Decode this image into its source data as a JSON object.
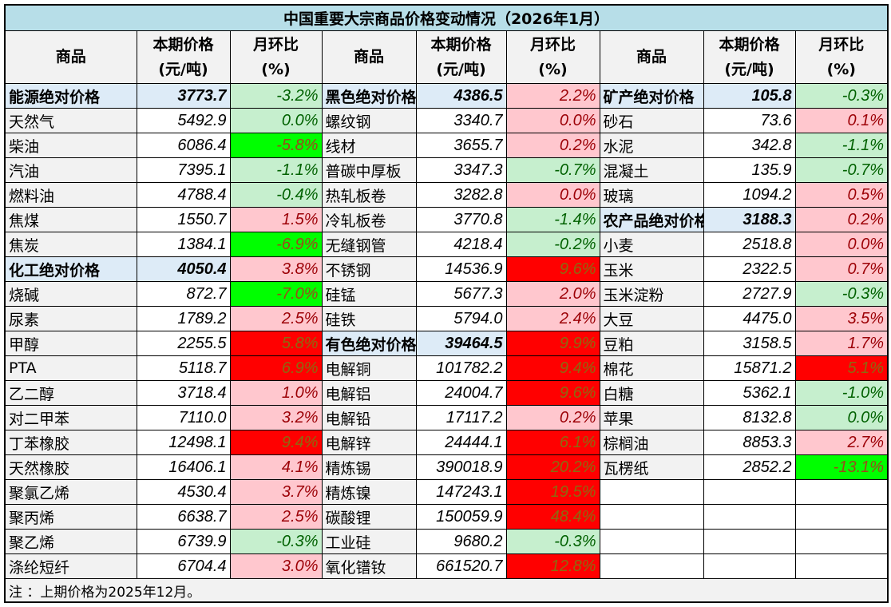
{
  "title": "中国重要大宗商品价格变动情况（2026年1月）",
  "headers": {
    "name": "商品",
    "price_l1": "本期价格",
    "price_l2": "(元/吨)",
    "pct_l1": "月环比",
    "pct_l2": "(%)"
  },
  "columns": [
    [
      {
        "name": "能源绝对价格",
        "price": "3773.7",
        "pct": "-3.2%",
        "fill": "lg",
        "section": true
      },
      {
        "name": "天然气",
        "price": "5492.9",
        "pct": "0.0%",
        "fill": "lg"
      },
      {
        "name": "柴油",
        "price": "6086.4",
        "pct": "-5.8%",
        "fill": "g"
      },
      {
        "name": "汽油",
        "price": "7395.1",
        "pct": "-1.1%",
        "fill": "lg"
      },
      {
        "name": "燃料油",
        "price": "4788.4",
        "pct": "-0.4%",
        "fill": "lg"
      },
      {
        "name": "焦煤",
        "price": "1550.7",
        "pct": "1.5%",
        "fill": "p"
      },
      {
        "name": "焦炭",
        "price": "1384.1",
        "pct": "-6.9%",
        "fill": "g"
      },
      {
        "name": "化工绝对价格",
        "price": "4050.4",
        "pct": "3.8%",
        "fill": "p",
        "section": true
      },
      {
        "name": "烧碱",
        "price": "872.7",
        "pct": "-7.0%",
        "fill": "g"
      },
      {
        "name": "尿素",
        "price": "1789.2",
        "pct": "2.5%",
        "fill": "p"
      },
      {
        "name": "甲醇",
        "price": "2255.5",
        "pct": "5.8%",
        "fill": "r"
      },
      {
        "name": "PTA",
        "price": "5118.7",
        "pct": "6.9%",
        "fill": "r"
      },
      {
        "name": "乙二醇",
        "price": "3718.4",
        "pct": "1.0%",
        "fill": "p"
      },
      {
        "name": "对二甲苯",
        "price": "7110.0",
        "pct": "3.2%",
        "fill": "p"
      },
      {
        "name": "丁苯橡胶",
        "price": "12498.1",
        "pct": "9.4%",
        "fill": "r"
      },
      {
        "name": "天然橡胶",
        "price": "16406.1",
        "pct": "4.1%",
        "fill": "p"
      },
      {
        "name": "聚氯乙烯",
        "price": "4530.4",
        "pct": "3.7%",
        "fill": "p"
      },
      {
        "name": "聚丙烯",
        "price": "6638.7",
        "pct": "2.5%",
        "fill": "p"
      },
      {
        "name": "聚乙烯",
        "price": "6739.9",
        "pct": "-0.3%",
        "fill": "lg"
      },
      {
        "name": "涤纶短纤",
        "price": "6704.4",
        "pct": "3.0%",
        "fill": "p"
      }
    ],
    [
      {
        "name": "黑色绝对价格",
        "price": "4386.5",
        "pct": "2.2%",
        "fill": "p",
        "section": true
      },
      {
        "name": "螺纹钢",
        "price": "3340.7",
        "pct": "0.0%",
        "fill": "p"
      },
      {
        "name": "线材",
        "price": "3655.7",
        "pct": "0.2%",
        "fill": "p"
      },
      {
        "name": "普碳中厚板",
        "price": "3347.3",
        "pct": "-0.7%",
        "fill": "lg"
      },
      {
        "name": "热轧板卷",
        "price": "3282.8",
        "pct": "0.0%",
        "fill": "p"
      },
      {
        "name": "冷轧板卷",
        "price": "3770.8",
        "pct": "-1.4%",
        "fill": "lg"
      },
      {
        "name": "无缝钢管",
        "price": "4218.4",
        "pct": "-0.2%",
        "fill": "lg"
      },
      {
        "name": "不锈钢",
        "price": "14536.9",
        "pct": "9.6%",
        "fill": "r"
      },
      {
        "name": "硅锰",
        "price": "5677.3",
        "pct": "2.0%",
        "fill": "p"
      },
      {
        "name": "硅铁",
        "price": "5794.0",
        "pct": "2.4%",
        "fill": "p"
      },
      {
        "name": "有色绝对价格",
        "price": "39464.5",
        "pct": "9.9%",
        "fill": "r",
        "section": true
      },
      {
        "name": "电解铜",
        "price": "101782.2",
        "pct": "9.4%",
        "fill": "r"
      },
      {
        "name": "电解铝",
        "price": "24004.7",
        "pct": "9.6%",
        "fill": "r"
      },
      {
        "name": "电解铅",
        "price": "17117.2",
        "pct": "0.2%",
        "fill": "p"
      },
      {
        "name": "电解锌",
        "price": "24444.1",
        "pct": "6.1%",
        "fill": "r"
      },
      {
        "name": "精炼锡",
        "price": "390018.9",
        "pct": "20.2%",
        "fill": "r"
      },
      {
        "name": "精炼镍",
        "price": "147243.1",
        "pct": "19.5%",
        "fill": "r"
      },
      {
        "name": "碳酸锂",
        "price": "150059.9",
        "pct": "48.4%",
        "fill": "r"
      },
      {
        "name": "工业硅",
        "price": "9680.2",
        "pct": "-0.3%",
        "fill": "lg"
      },
      {
        "name": "氧化镨钕",
        "price": "661520.7",
        "pct": "12.8%",
        "fill": "r"
      }
    ],
    [
      {
        "name": "矿产绝对价格",
        "price": "105.8",
        "pct": "-0.3%",
        "fill": "lg",
        "section": true
      },
      {
        "name": "砂石",
        "price": "73.6",
        "pct": "0.1%",
        "fill": "p"
      },
      {
        "name": "水泥",
        "price": "342.8",
        "pct": "-1.1%",
        "fill": "lg"
      },
      {
        "name": "混凝土",
        "price": "135.9",
        "pct": "-0.7%",
        "fill": "lg"
      },
      {
        "name": "玻璃",
        "price": "1094.2",
        "pct": "0.5%",
        "fill": "p"
      },
      {
        "name": "农产品绝对价格",
        "price": "3188.3",
        "pct": "0.2%",
        "fill": "p",
        "section": true
      },
      {
        "name": "小麦",
        "price": "2518.8",
        "pct": "0.0%",
        "fill": "p"
      },
      {
        "name": "玉米",
        "price": "2322.5",
        "pct": "0.7%",
        "fill": "p"
      },
      {
        "name": "玉米淀粉",
        "price": "2727.9",
        "pct": "-0.3%",
        "fill": "lg"
      },
      {
        "name": "大豆",
        "price": "4475.0",
        "pct": "3.5%",
        "fill": "p"
      },
      {
        "name": "豆粕",
        "price": "3158.5",
        "pct": "1.7%",
        "fill": "p"
      },
      {
        "name": "棉花",
        "price": "15871.2",
        "pct": "5.1%",
        "fill": "r"
      },
      {
        "name": "白糖",
        "price": "5362.1",
        "pct": "-1.0%",
        "fill": "lg"
      },
      {
        "name": "苹果",
        "price": "8132.8",
        "pct": "0.0%",
        "fill": "lg"
      },
      {
        "name": "棕榈油",
        "price": "8853.3",
        "pct": "2.7%",
        "fill": "p"
      },
      {
        "name": "瓦楞纸",
        "price": "2852.2",
        "pct": "-13.1%",
        "fill": "g"
      }
    ]
  ],
  "note": "注 ：上期价格为2025年12月。"
}
